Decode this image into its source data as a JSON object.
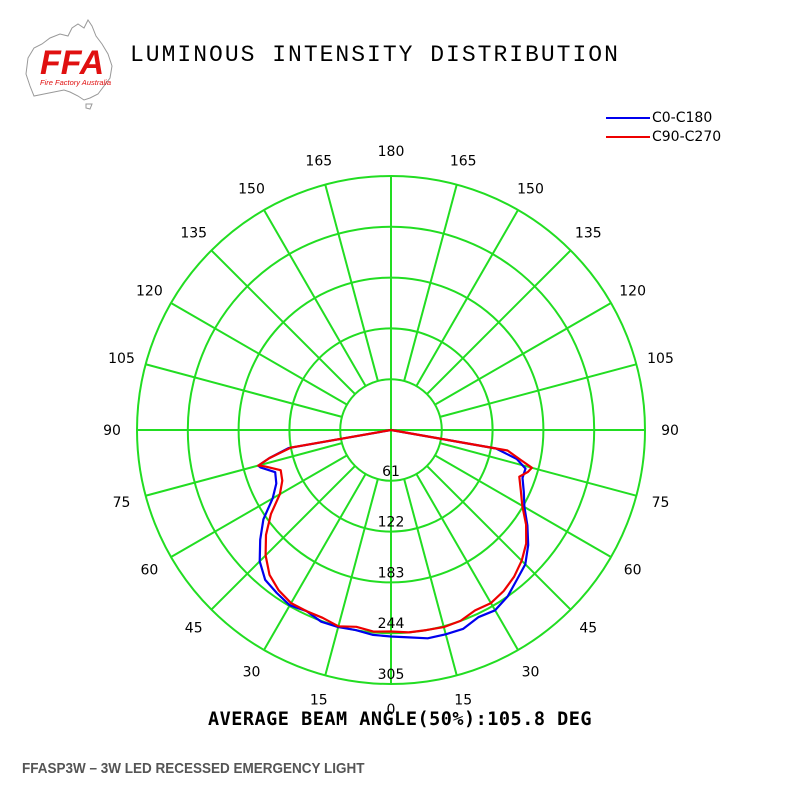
{
  "logo": {
    "text": "FFA",
    "subtext": "Fire Factory Australia"
  },
  "title": "LUMINOUS INTENSITY DISTRIBUTION",
  "beam_angle_text": "AVERAGE BEAM ANGLE(50%):105.8 DEG",
  "product_caption": "FFASP3W – 3W LED RECESSED EMERGENCY LIGHT",
  "colors": {
    "grid": "#22dd22",
    "c0": "#0000ee",
    "c90": "#ee0000",
    "logo_red": "#e01010"
  },
  "chart_data": {
    "type": "polar",
    "title": "LUMINOUS INTENSITY DISTRIBUTION",
    "angle_labels_left": [
      "180",
      "165",
      "150",
      "135",
      "120",
      "105",
      "90",
      "75",
      "60",
      "45",
      "30",
      "15",
      "0"
    ],
    "angle_labels_right": [
      "165",
      "150",
      "135",
      "120",
      "105",
      "90",
      "75",
      "60",
      "45",
      "30",
      "15"
    ],
    "radial_labels": [
      "61",
      "122",
      "183",
      "244",
      "305"
    ],
    "rmax": 305,
    "grid": true,
    "legend_position": "top-right",
    "series": [
      {
        "name": "C0-C180",
        "color": "#0000ee",
        "points": [
          [
            -90,
            0
          ],
          [
            -80,
            125
          ],
          [
            -77,
            150
          ],
          [
            -75,
            165
          ],
          [
            -74,
            163
          ],
          [
            -70,
            148
          ],
          [
            -65,
            152
          ],
          [
            -60,
            164
          ],
          [
            -55,
            187
          ],
          [
            -50,
            205
          ],
          [
            -45,
            223
          ],
          [
            -40,
            235
          ],
          [
            -35,
            239
          ],
          [
            -30,
            243
          ],
          [
            -25,
            240
          ],
          [
            -20,
            245
          ],
          [
            -15,
            245
          ],
          [
            -10,
            244
          ],
          [
            -5,
            247
          ],
          [
            0,
            248
          ],
          [
            5,
            250
          ],
          [
            10,
            254
          ],
          [
            15,
            254
          ],
          [
            20,
            254
          ],
          [
            25,
            248
          ],
          [
            30,
            250
          ],
          [
            35,
            244
          ],
          [
            40,
            235
          ],
          [
            45,
            228
          ],
          [
            50,
            215
          ],
          [
            55,
            200
          ],
          [
            60,
            185
          ],
          [
            65,
            176
          ],
          [
            70,
            168
          ],
          [
            74,
            168
          ],
          [
            77,
            155
          ],
          [
            80,
            128
          ],
          [
            90,
            0
          ]
        ]
      },
      {
        "name": "C90-C270",
        "color": "#ee0000",
        "points": [
          [
            -90,
            0
          ],
          [
            -80,
            122
          ],
          [
            -77,
            150
          ],
          [
            -75,
            165
          ],
          [
            -74,
            158
          ],
          [
            -70,
            141
          ],
          [
            -65,
            144
          ],
          [
            -60,
            154
          ],
          [
            -55,
            176
          ],
          [
            -50,
            196
          ],
          [
            -45,
            213
          ],
          [
            -40,
            227
          ],
          [
            -35,
            235
          ],
          [
            -30,
            240
          ],
          [
            -25,
            240
          ],
          [
            -20,
            240
          ],
          [
            -15,
            244
          ],
          [
            -10,
            240
          ],
          [
            -5,
            243
          ],
          [
            0,
            242
          ],
          [
            5,
            244
          ],
          [
            10,
            244
          ],
          [
            15,
            245
          ],
          [
            20,
            244
          ],
          [
            25,
            239
          ],
          [
            30,
            240
          ],
          [
            35,
            236
          ],
          [
            40,
            230
          ],
          [
            45,
            222
          ],
          [
            50,
            212
          ],
          [
            55,
            198
          ],
          [
            60,
            182
          ],
          [
            65,
            172
          ],
          [
            70,
            164
          ],
          [
            73,
            172
          ],
          [
            75,
            175
          ],
          [
            77,
            160
          ],
          [
            80,
            142
          ],
          [
            90,
            0
          ]
        ]
      }
    ]
  }
}
